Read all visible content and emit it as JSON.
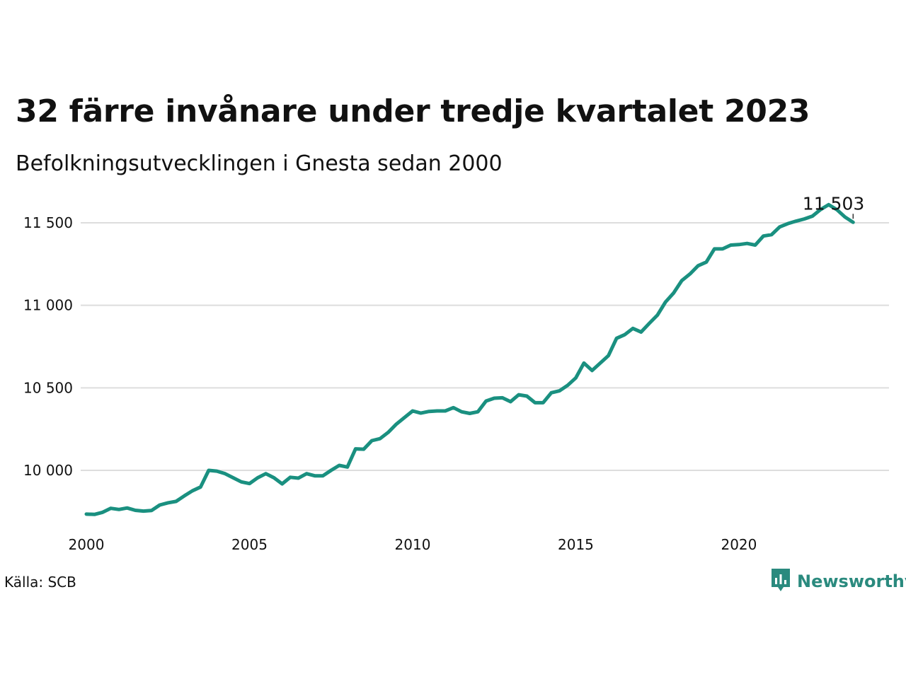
{
  "title": "32 färre invånare under tredje kvartalet 2023",
  "subtitle": "Befolkningsutvecklingen i Gnesta sedan 2000",
  "source": "Källa: SCB",
  "logo": {
    "text": "Newsworthy",
    "icon": "newsworthy-chart-bubble-icon",
    "color": "#2a8a7e"
  },
  "chart_data": {
    "type": "line",
    "title": "32 färre invånare under tredje kvartalet 2023",
    "subtitle": "Befolkningsutvecklingen i Gnesta sedan 2000",
    "xlabel": "",
    "ylabel": "",
    "grid": true,
    "legend": "none",
    "line_color": "#1a9080",
    "grid_color": "#dddddd",
    "xlim": [
      2000,
      2024.6
    ],
    "ylim": [
      9700,
      11650
    ],
    "x_ticks": [
      {
        "value": 2000,
        "label": "2000"
      },
      {
        "value": 2005,
        "label": "2005"
      },
      {
        "value": 2010,
        "label": "2010"
      },
      {
        "value": 2015,
        "label": "2015"
      },
      {
        "value": 2020,
        "label": "2020"
      }
    ],
    "y_ticks": [
      {
        "value": 10000,
        "label": "10 000"
      },
      {
        "value": 10500,
        "label": "10 500"
      },
      {
        "value": 11000,
        "label": "11 000"
      },
      {
        "value": 11500,
        "label": "11 500"
      }
    ],
    "annotation": {
      "x": 2023.5,
      "y": 11503,
      "label": "11 503"
    },
    "series": [
      {
        "x": [
          2000.0,
          2000.25,
          2000.5,
          2000.75,
          2001.0,
          2001.25,
          2001.5,
          2001.75,
          2002.0,
          2002.25,
          2002.5,
          2002.75,
          2003.0,
          2003.25,
          2003.5,
          2003.75,
          2004.0,
          2004.25,
          2004.5,
          2004.75,
          2005.0,
          2005.25,
          2005.5,
          2005.75,
          2006.0,
          2006.25,
          2006.5,
          2006.75,
          2007.0,
          2007.25,
          2007.5,
          2007.75,
          2008.0,
          2008.25,
          2008.5,
          2008.75,
          2009.0,
          2009.25,
          2009.5,
          2009.75,
          2010.0,
          2010.25,
          2010.5,
          2010.75,
          2011.0,
          2011.25,
          2011.5,
          2011.75,
          2012.0,
          2012.25,
          2012.5,
          2012.75,
          2013.0,
          2013.25,
          2013.5,
          2013.75,
          2014.0,
          2014.25,
          2014.5,
          2014.75,
          2015.0,
          2015.25,
          2015.5,
          2015.75,
          2016.0,
          2016.25,
          2016.5,
          2016.75,
          2017.0,
          2017.25,
          2017.5,
          2017.75,
          2018.0,
          2018.25,
          2018.5,
          2018.75,
          2019.0,
          2019.25,
          2019.5,
          2019.75,
          2020.0,
          2020.25,
          2020.5,
          2020.75,
          2021.0,
          2021.25,
          2021.5,
          2021.75,
          2022.0,
          2022.25,
          2022.5,
          2022.75,
          2023.0,
          2023.25,
          2023.5
        ],
        "values": [
          9735,
          9733,
          9746,
          9770,
          9763,
          9772,
          9758,
          9753,
          9757,
          9790,
          9803,
          9812,
          9845,
          9876,
          9899,
          10000,
          9995,
          9980,
          9955,
          9930,
          9920,
          9955,
          9980,
          9955,
          9918,
          9958,
          9953,
          9980,
          9967,
          9967,
          10000,
          10030,
          10020,
          10130,
          10128,
          10180,
          10192,
          10230,
          10280,
          10320,
          10360,
          10347,
          10357,
          10360,
          10360,
          10380,
          10355,
          10345,
          10355,
          10420,
          10437,
          10440,
          10416,
          10458,
          10450,
          10410,
          10410,
          10470,
          10482,
          10515,
          10560,
          10650,
          10605,
          10650,
          10695,
          10800,
          10822,
          10860,
          10838,
          10890,
          10940,
          11020,
          11075,
          11150,
          11190,
          11240,
          11262,
          11342,
          11342,
          11365,
          11368,
          11375,
          11365,
          11420,
          11428,
          11475,
          11495,
          11510,
          11523,
          11540,
          11580,
          11610,
          11580,
          11535,
          11503
        ]
      }
    ]
  }
}
